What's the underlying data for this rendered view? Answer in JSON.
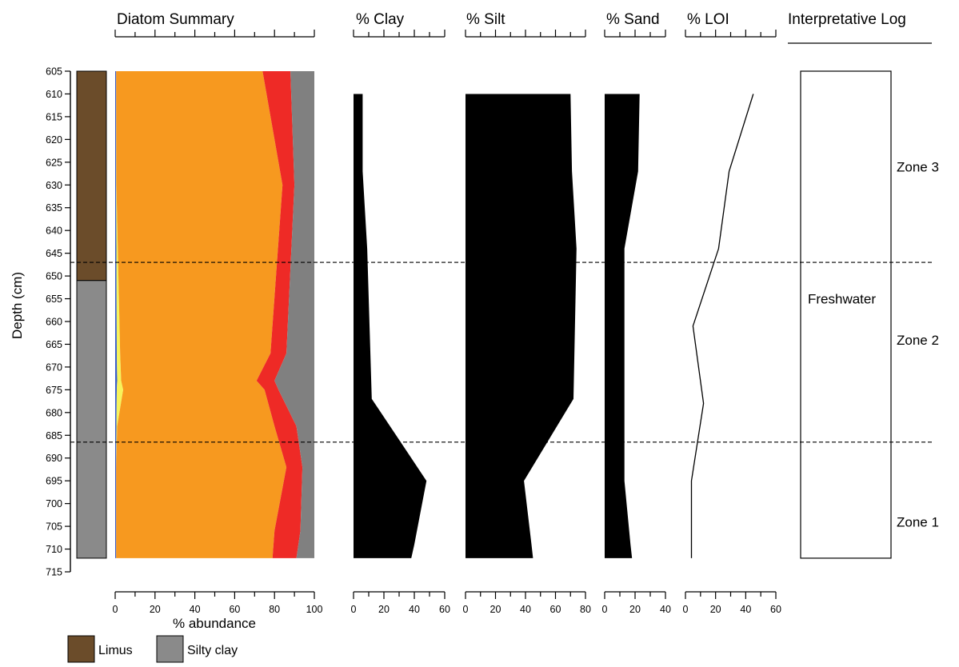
{
  "chart_data": {
    "type": "area",
    "depth_axis": {
      "label": "Depth (cm)",
      "range": [
        605,
        715
      ],
      "ticks": [
        605,
        610,
        615,
        620,
        625,
        630,
        635,
        640,
        645,
        650,
        655,
        660,
        665,
        670,
        675,
        680,
        685,
        690,
        695,
        700,
        705,
        710,
        715
      ]
    },
    "panels": [
      {
        "id": "diatom",
        "title": "Diatom Summary",
        "xlabel": "% abundance",
        "xlim": [
          0,
          100
        ],
        "ticks": [
          0,
          20,
          40,
          60,
          80,
          100
        ],
        "type": "stacked-area",
        "depths": [
          605,
          630,
          667,
          673,
          675,
          683,
          692,
          706,
          712
        ],
        "boundaries": [
          {
            "color": "#3a5fcd",
            "values": [
              0.5,
              0.5,
              0.8,
              1.0,
              0.8,
              0.6,
              0.5,
              0.5,
              0.5
            ]
          },
          {
            "color": "#f7f35a",
            "values": [
              0.5,
              0.6,
              2.5,
              3.0,
              4.0,
              1.0,
              0.5,
              0.5,
              0.5
            ]
          },
          {
            "color": "#f7991f",
            "values": [
              74,
              84,
              78,
              71,
              75,
              80,
              86,
              80,
              79
            ]
          },
          {
            "color": "#ee2a26",
            "values": [
              88,
              90,
              86,
              80,
              82,
              91,
              94,
              93,
              91
            ]
          },
          {
            "color": "#808080",
            "values": [
              100,
              100,
              100,
              100,
              100,
              100,
              100,
              100,
              100
            ]
          }
        ]
      },
      {
        "id": "clay",
        "title": "% Clay",
        "xlim": [
          0,
          60
        ],
        "ticks": [
          0,
          20,
          40,
          60
        ],
        "type": "filled-profile",
        "depths": [
          610,
          627,
          644,
          677,
          695,
          709,
          712
        ],
        "values": [
          6,
          6,
          9,
          12,
          48,
          40,
          38
        ]
      },
      {
        "id": "silt",
        "title": "% Silt",
        "xlim": [
          0,
          80
        ],
        "ticks": [
          0,
          20,
          40,
          60,
          80
        ],
        "type": "filled-profile",
        "depths": [
          610,
          627,
          644,
          677,
          695,
          709,
          712
        ],
        "values": [
          70,
          71,
          74,
          72,
          39,
          44,
          45
        ]
      },
      {
        "id": "sand",
        "title": "% Sand",
        "xlim": [
          0,
          40
        ],
        "ticks": [
          0,
          20,
          40
        ],
        "type": "filled-profile",
        "depths": [
          610,
          627,
          644,
          695,
          709,
          712
        ],
        "values": [
          23,
          22,
          13,
          13,
          17,
          18
        ]
      },
      {
        "id": "loi",
        "title": "% LOI",
        "xlim": [
          0,
          60
        ],
        "ticks": [
          0,
          20,
          40,
          60
        ],
        "type": "line",
        "depths": [
          610,
          627,
          644,
          661,
          678,
          695,
          712
        ],
        "values": [
          45,
          29,
          22,
          5,
          12,
          4,
          4
        ]
      }
    ],
    "lithology": {
      "units": [
        {
          "label": "Limus",
          "color": "#6b4c2a",
          "from": 605,
          "to": 651
        },
        {
          "label": "Silty clay",
          "color": "#8a8a8a",
          "from": 651,
          "to": 712
        }
      ]
    },
    "interpretive_log": {
      "title": "Interpretative Log",
      "box_depth": [
        605,
        712
      ],
      "label": "Freshwater",
      "label_depth": 655
    },
    "zone_boundaries": [
      647,
      686.5
    ],
    "zones": [
      {
        "label": "Zone 3",
        "depth": 626
      },
      {
        "label": "Zone 2",
        "depth": 664
      },
      {
        "label": "Zone 1",
        "depth": 704
      }
    ]
  }
}
